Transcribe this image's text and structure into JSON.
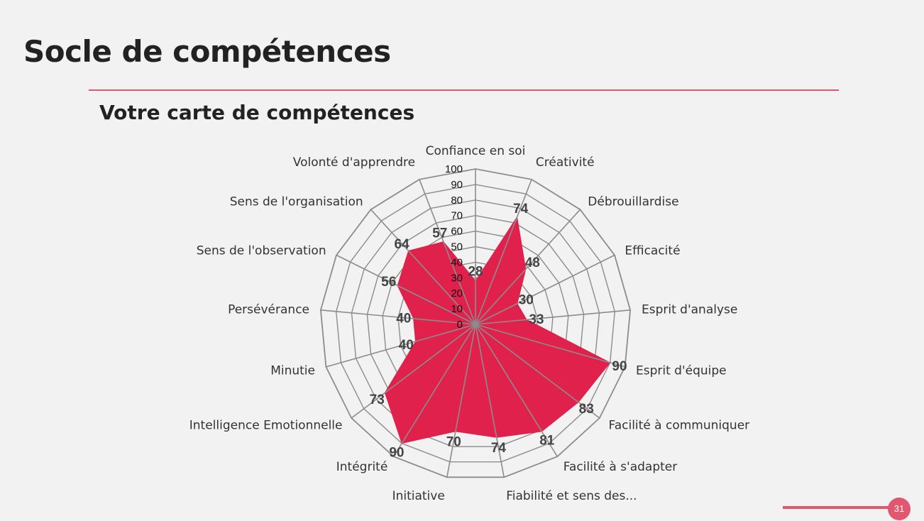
{
  "slide": {
    "title": "Socle de compétences",
    "subtitle": "Votre carte de compétences",
    "page_number": "31"
  },
  "colors": {
    "accent": "#e2566f",
    "fill": "#e0214b",
    "grid": "#8c8c8c"
  },
  "chart_data": {
    "type": "radar",
    "categories": [
      "Confiance en soi",
      "Créativité",
      "Débrouillardise",
      "Efficacité",
      "Esprit d'analyse",
      "Esprit d'équipe",
      "Facilité à communiquer",
      "Facilité à s'adapter",
      "Fiabilité et sens des...",
      "Initiative",
      "Intégrité",
      "Intelligence Emotionnelle",
      "Minutie",
      "Persévérance",
      "Sens de l'observation",
      "Sens de l'organisation",
      "Volonté d'apprendre"
    ],
    "values": [
      28,
      74,
      48,
      30,
      33,
      90,
      83,
      81,
      74,
      70,
      90,
      73,
      40,
      40,
      56,
      64,
      57
    ],
    "ticks": [
      0,
      10,
      20,
      30,
      40,
      50,
      60,
      70,
      80,
      90,
      100
    ],
    "rlim": [
      0,
      100
    ],
    "grid": true,
    "legend": "none"
  }
}
